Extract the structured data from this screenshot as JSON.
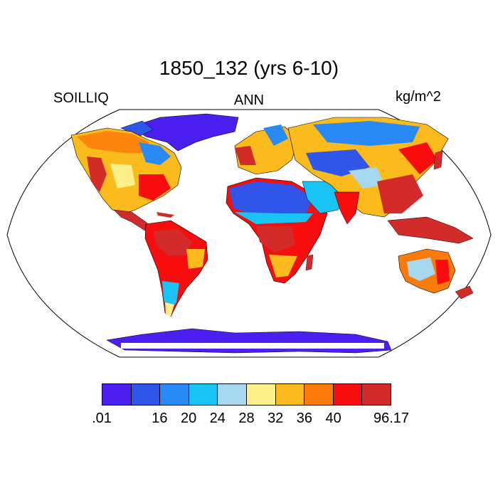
{
  "title": "1850_132 (yrs 6-10)",
  "left_label": "SOILLIQ",
  "center_label": "ANN",
  "units_label": "kg/m^2",
  "colorbar": {
    "colors": [
      "#4a1ff0",
      "#2f56e8",
      "#2a8af5",
      "#1ac3f5",
      "#a6d8f0",
      "#fbf08a",
      "#fcbb1c",
      "#fb7b0a",
      "#f70d0d",
      "#d32a2a"
    ],
    "tick_labels": [
      ".01",
      "16",
      "20",
      "24",
      "28",
      "32",
      "36",
      "40",
      "96.17"
    ]
  }
}
